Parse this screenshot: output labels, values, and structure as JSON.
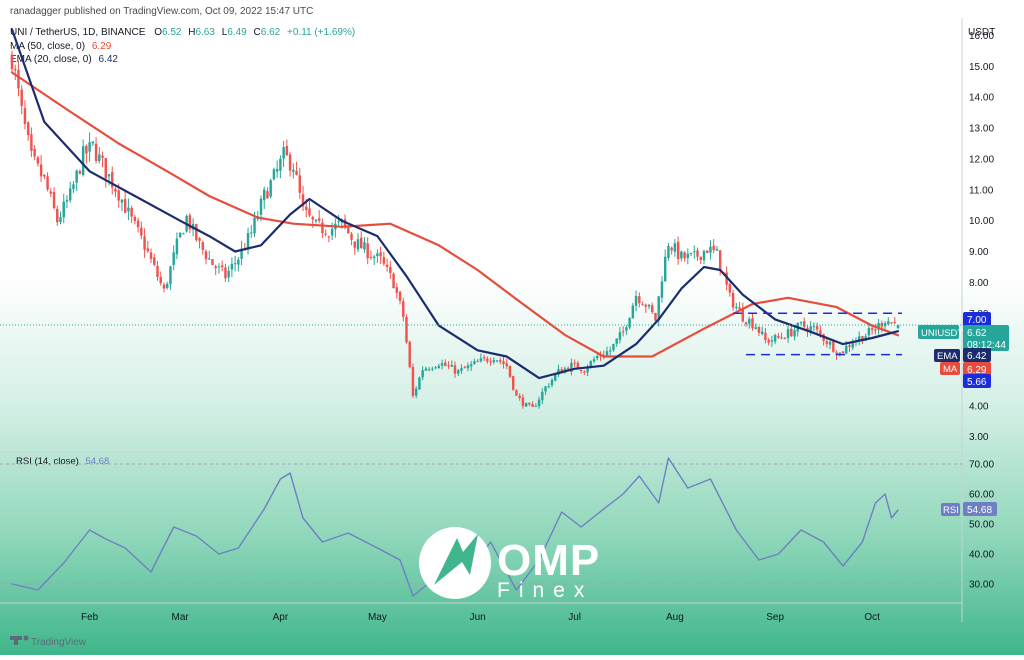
{
  "header": {
    "published": "ranadagger published on TradingView.com, Oct 09, 2022 15:47 UTC",
    "symbol": "UNI / TetherUS, 1D, BINANCE",
    "ohlc": {
      "o_label": "O",
      "o": "6.52",
      "h_label": "H",
      "h": "6.63",
      "l_label": "L",
      "l": "6.49",
      "c_label": "C",
      "c": "6.62",
      "change": "+0.11 (+1.69%)"
    },
    "ma_legend": {
      "label": "MA (50, close, 0)",
      "value": "6.29"
    },
    "ema_legend": {
      "label": "EMA (20, close, 0)",
      "value": "6.42"
    }
  },
  "price_axis": {
    "currency": "USDT",
    "ticks": [
      "16.00",
      "15.00",
      "14.00",
      "13.00",
      "12.00",
      "11.00",
      "10.00",
      "9.00",
      "8.00",
      "7.00",
      "6.00",
      "5.00",
      "4.00",
      "3.00"
    ]
  },
  "time_axis": {
    "ticks": [
      "Feb",
      "Mar",
      "Apr",
      "May",
      "Jun",
      "Jul",
      "Aug",
      "Sep",
      "Oct"
    ]
  },
  "badges": {
    "level_high": "7.00",
    "symbol_tag": "UNIUSDT",
    "last_price": "6.62",
    "countdown": "08:12:44",
    "ema_tag": "EMA",
    "ema_value": "6.42",
    "ma_tag": "MA",
    "ma_value": "6.29",
    "level_low": "5.66"
  },
  "rsi": {
    "label": "RSI (14, close)",
    "value": "54.68",
    "ticks": [
      "70.00",
      "60.00",
      "50.00",
      "40.00",
      "30.00"
    ],
    "tag": "RSI"
  },
  "watermark": {
    "brand_top": "OMP",
    "brand_bottom": "Finex"
  },
  "footer": {
    "logo_text": "TradingView"
  },
  "colors": {
    "candle_up": "#26a69a",
    "candle_down": "#ef5350",
    "ema": "#1c2d6e",
    "ma": "#e74c3c",
    "rsi": "#6f7fc4",
    "level_lines": "#1c2cdb",
    "background_gradient_bottom": "#3fb68b"
  },
  "chart_data": [
    {
      "type": "candlestick",
      "title": "UNI / TetherUS, 1D, BINANCE",
      "ylabel": "USDT",
      "ylim": [
        2.7,
        16.5
      ],
      "x_ticks": [
        "Feb",
        "Mar",
        "Apr",
        "May",
        "Jun",
        "Jul",
        "Aug",
        "Sep",
        "Oct"
      ],
      "grid": false,
      "x_start": "2022-01-08",
      "x_end": "2022-10-09",
      "price_path": [
        [
          "2022-01-08",
          15.3
        ],
        [
          "2022-01-11",
          13.5
        ],
        [
          "2022-01-14",
          12.0
        ],
        [
          "2022-01-18",
          11.3
        ],
        [
          "2022-01-22",
          10.0
        ],
        [
          "2022-01-26",
          10.8
        ],
        [
          "2022-01-30",
          12.1
        ],
        [
          "2022-02-02",
          12.4
        ],
        [
          "2022-02-06",
          11.6
        ],
        [
          "2022-02-10",
          10.9
        ],
        [
          "2022-02-14",
          10.0
        ],
        [
          "2022-02-18",
          9.2
        ],
        [
          "2022-02-22",
          8.2
        ],
        [
          "2022-02-24",
          7.7
        ],
        [
          "2022-02-28",
          9.2
        ],
        [
          "2022-03-03",
          10.1
        ],
        [
          "2022-03-07",
          9.2
        ],
        [
          "2022-03-11",
          8.6
        ],
        [
          "2022-03-15",
          8.2
        ],
        [
          "2022-03-19",
          8.8
        ],
        [
          "2022-03-23",
          9.6
        ],
        [
          "2022-03-27",
          10.8
        ],
        [
          "2022-03-31",
          11.6
        ],
        [
          "2022-04-02",
          12.1
        ],
        [
          "2022-04-05",
          11.8
        ],
        [
          "2022-04-08",
          10.3
        ],
        [
          "2022-04-12",
          9.8
        ],
        [
          "2022-04-16",
          9.7
        ],
        [
          "2022-04-20",
          9.9
        ],
        [
          "2022-04-24",
          9.3
        ],
        [
          "2022-04-28",
          9.0
        ],
        [
          "2022-05-02",
          8.7
        ],
        [
          "2022-05-06",
          8.0
        ],
        [
          "2022-05-09",
          6.9
        ],
        [
          "2022-05-11",
          5.2
        ],
        [
          "2022-05-12",
          4.3
        ],
        [
          "2022-05-15",
          5.2
        ],
        [
          "2022-05-20",
          5.4
        ],
        [
          "2022-05-26",
          5.1
        ],
        [
          "2022-06-01",
          5.4
        ],
        [
          "2022-06-06",
          5.6
        ],
        [
          "2022-06-10",
          5.3
        ],
        [
          "2022-06-13",
          4.3
        ],
        [
          "2022-06-16",
          4.0
        ],
        [
          "2022-06-18",
          3.9
        ],
        [
          "2022-06-22",
          4.6
        ],
        [
          "2022-06-26",
          5.1
        ],
        [
          "2022-06-30",
          5.3
        ],
        [
          "2022-07-04",
          5.2
        ],
        [
          "2022-07-08",
          5.6
        ],
        [
          "2022-07-12",
          5.8
        ],
        [
          "2022-07-16",
          6.4
        ],
        [
          "2022-07-20",
          7.6
        ],
        [
          "2022-07-23",
          7.3
        ],
        [
          "2022-07-26",
          6.8
        ],
        [
          "2022-07-28",
          8.2
        ],
        [
          "2022-07-30",
          9.3
        ],
        [
          "2022-08-03",
          8.8
        ],
        [
          "2022-08-07",
          8.8
        ],
        [
          "2022-08-11",
          9.1
        ],
        [
          "2022-08-14",
          8.9
        ],
        [
          "2022-08-18",
          7.5
        ],
        [
          "2022-08-22",
          6.9
        ],
        [
          "2022-08-26",
          6.6
        ],
        [
          "2022-08-29",
          6.1
        ],
        [
          "2022-09-02",
          6.2
        ],
        [
          "2022-09-06",
          6.4
        ],
        [
          "2022-09-09",
          6.6
        ],
        [
          "2022-09-13",
          6.5
        ],
        [
          "2022-09-17",
          6.1
        ],
        [
          "2022-09-21",
          5.7
        ],
        [
          "2022-09-25",
          6.1
        ],
        [
          "2022-09-29",
          6.3
        ],
        [
          "2022-10-02",
          6.5
        ],
        [
          "2022-10-05",
          6.8
        ],
        [
          "2022-10-09",
          6.62
        ]
      ],
      "last": {
        "open": 6.52,
        "high": 6.63,
        "low": 6.49,
        "close": 6.62,
        "change": 0.11,
        "change_pct": 1.69
      },
      "series": [
        {
          "name": "EMA (20, close, 0)",
          "type": "line",
          "values": [
            [
              "2022-01-08",
              16.2
            ],
            [
              "2022-01-18",
              13.2
            ],
            [
              "2022-02-01",
              11.6
            ],
            [
              "2022-02-15",
              10.8
            ],
            [
              "2022-03-01",
              10.0
            ],
            [
              "2022-03-10",
              9.5
            ],
            [
              "2022-03-18",
              9.0
            ],
            [
              "2022-03-26",
              9.2
            ],
            [
              "2022-04-04",
              10.2
            ],
            [
              "2022-04-10",
              10.7
            ],
            [
              "2022-04-20",
              10.0
            ],
            [
              "2022-05-01",
              9.5
            ],
            [
              "2022-05-10",
              8.2
            ],
            [
              "2022-05-20",
              6.6
            ],
            [
              "2022-06-01",
              5.8
            ],
            [
              "2022-06-10",
              5.6
            ],
            [
              "2022-06-20",
              4.9
            ],
            [
              "2022-07-01",
              5.2
            ],
            [
              "2022-07-10",
              5.3
            ],
            [
              "2022-07-20",
              6.0
            ],
            [
              "2022-07-27",
              6.8
            ],
            [
              "2022-08-03",
              7.8
            ],
            [
              "2022-08-10",
              8.5
            ],
            [
              "2022-08-15",
              8.4
            ],
            [
              "2022-08-22",
              7.6
            ],
            [
              "2022-09-01",
              6.8
            ],
            [
              "2022-09-12",
              6.4
            ],
            [
              "2022-09-22",
              6.0
            ],
            [
              "2022-10-01",
              6.2
            ],
            [
              "2022-10-09",
              6.42
            ]
          ]
        },
        {
          "name": "MA (50, close, 0)",
          "type": "line",
          "values": [
            [
              "2022-01-08",
              14.8
            ],
            [
              "2022-01-25",
              13.6
            ],
            [
              "2022-02-10",
              12.5
            ],
            [
              "2022-02-25",
              11.6
            ],
            [
              "2022-03-10",
              10.8
            ],
            [
              "2022-03-25",
              10.1
            ],
            [
              "2022-04-05",
              9.9
            ],
            [
              "2022-04-20",
              9.8
            ],
            [
              "2022-05-05",
              9.9
            ],
            [
              "2022-05-20",
              9.2
            ],
            [
              "2022-06-01",
              8.4
            ],
            [
              "2022-06-15",
              7.3
            ],
            [
              "2022-06-28",
              6.3
            ],
            [
              "2022-07-10",
              5.6
            ],
            [
              "2022-07-25",
              5.6
            ],
            [
              "2022-08-10",
              6.5
            ],
            [
              "2022-08-25",
              7.3
            ],
            [
              "2022-09-05",
              7.5
            ],
            [
              "2022-09-20",
              7.2
            ],
            [
              "2022-10-01",
              6.6
            ],
            [
              "2022-10-09",
              6.29
            ]
          ]
        }
      ],
      "levels": [
        {
          "label": "7.00",
          "value": 7.0,
          "style": "dashed",
          "from": "2022-08-19",
          "to": "2022-10-09"
        },
        {
          "label": "5.66",
          "value": 5.66,
          "style": "dashed",
          "from": "2022-08-23",
          "to": "2022-10-09"
        }
      ]
    },
    {
      "type": "line",
      "title": "RSI (14, close)",
      "ylim": [
        24,
        74
      ],
      "y_ticks": [
        70,
        60,
        50,
        40,
        30
      ],
      "grid": false,
      "series": [
        {
          "name": "RSI (14, close)",
          "values": [
            [
              "2022-01-08",
              30
            ],
            [
              "2022-01-16",
              28
            ],
            [
              "2022-01-24",
              37
            ],
            [
              "2022-02-01",
              48
            ],
            [
              "2022-02-06",
              45
            ],
            [
              "2022-02-12",
              42
            ],
            [
              "2022-02-20",
              34
            ],
            [
              "2022-02-27",
              49
            ],
            [
              "2022-03-06",
              46
            ],
            [
              "2022-03-13",
              40
            ],
            [
              "2022-03-19",
              42
            ],
            [
              "2022-03-27",
              55
            ],
            [
              "2022-04-01",
              65
            ],
            [
              "2022-04-04",
              67
            ],
            [
              "2022-04-08",
              52
            ],
            [
              "2022-04-14",
              44
            ],
            [
              "2022-04-22",
              47
            ],
            [
              "2022-05-01",
              42
            ],
            [
              "2022-05-08",
              38
            ],
            [
              "2022-05-12",
              26
            ],
            [
              "2022-05-20",
              33
            ],
            [
              "2022-05-28",
              32
            ],
            [
              "2022-06-05",
              44
            ],
            [
              "2022-06-13",
              28
            ],
            [
              "2022-06-20",
              38
            ],
            [
              "2022-06-27",
              54
            ],
            [
              "2022-07-03",
              49
            ],
            [
              "2022-07-10",
              55
            ],
            [
              "2022-07-16",
              60
            ],
            [
              "2022-07-21",
              66
            ],
            [
              "2022-07-27",
              57
            ],
            [
              "2022-07-30",
              72
            ],
            [
              "2022-08-05",
              62
            ],
            [
              "2022-08-12",
              65
            ],
            [
              "2022-08-20",
              48
            ],
            [
              "2022-08-27",
              38
            ],
            [
              "2022-09-02",
              40
            ],
            [
              "2022-09-09",
              48
            ],
            [
              "2022-09-16",
              44
            ],
            [
              "2022-09-22",
              36
            ],
            [
              "2022-09-28",
              44
            ],
            [
              "2022-10-02",
              57
            ],
            [
              "2022-10-05",
              60
            ],
            [
              "2022-10-07",
              52
            ],
            [
              "2022-10-09",
              54.68
            ]
          ]
        }
      ]
    }
  ]
}
